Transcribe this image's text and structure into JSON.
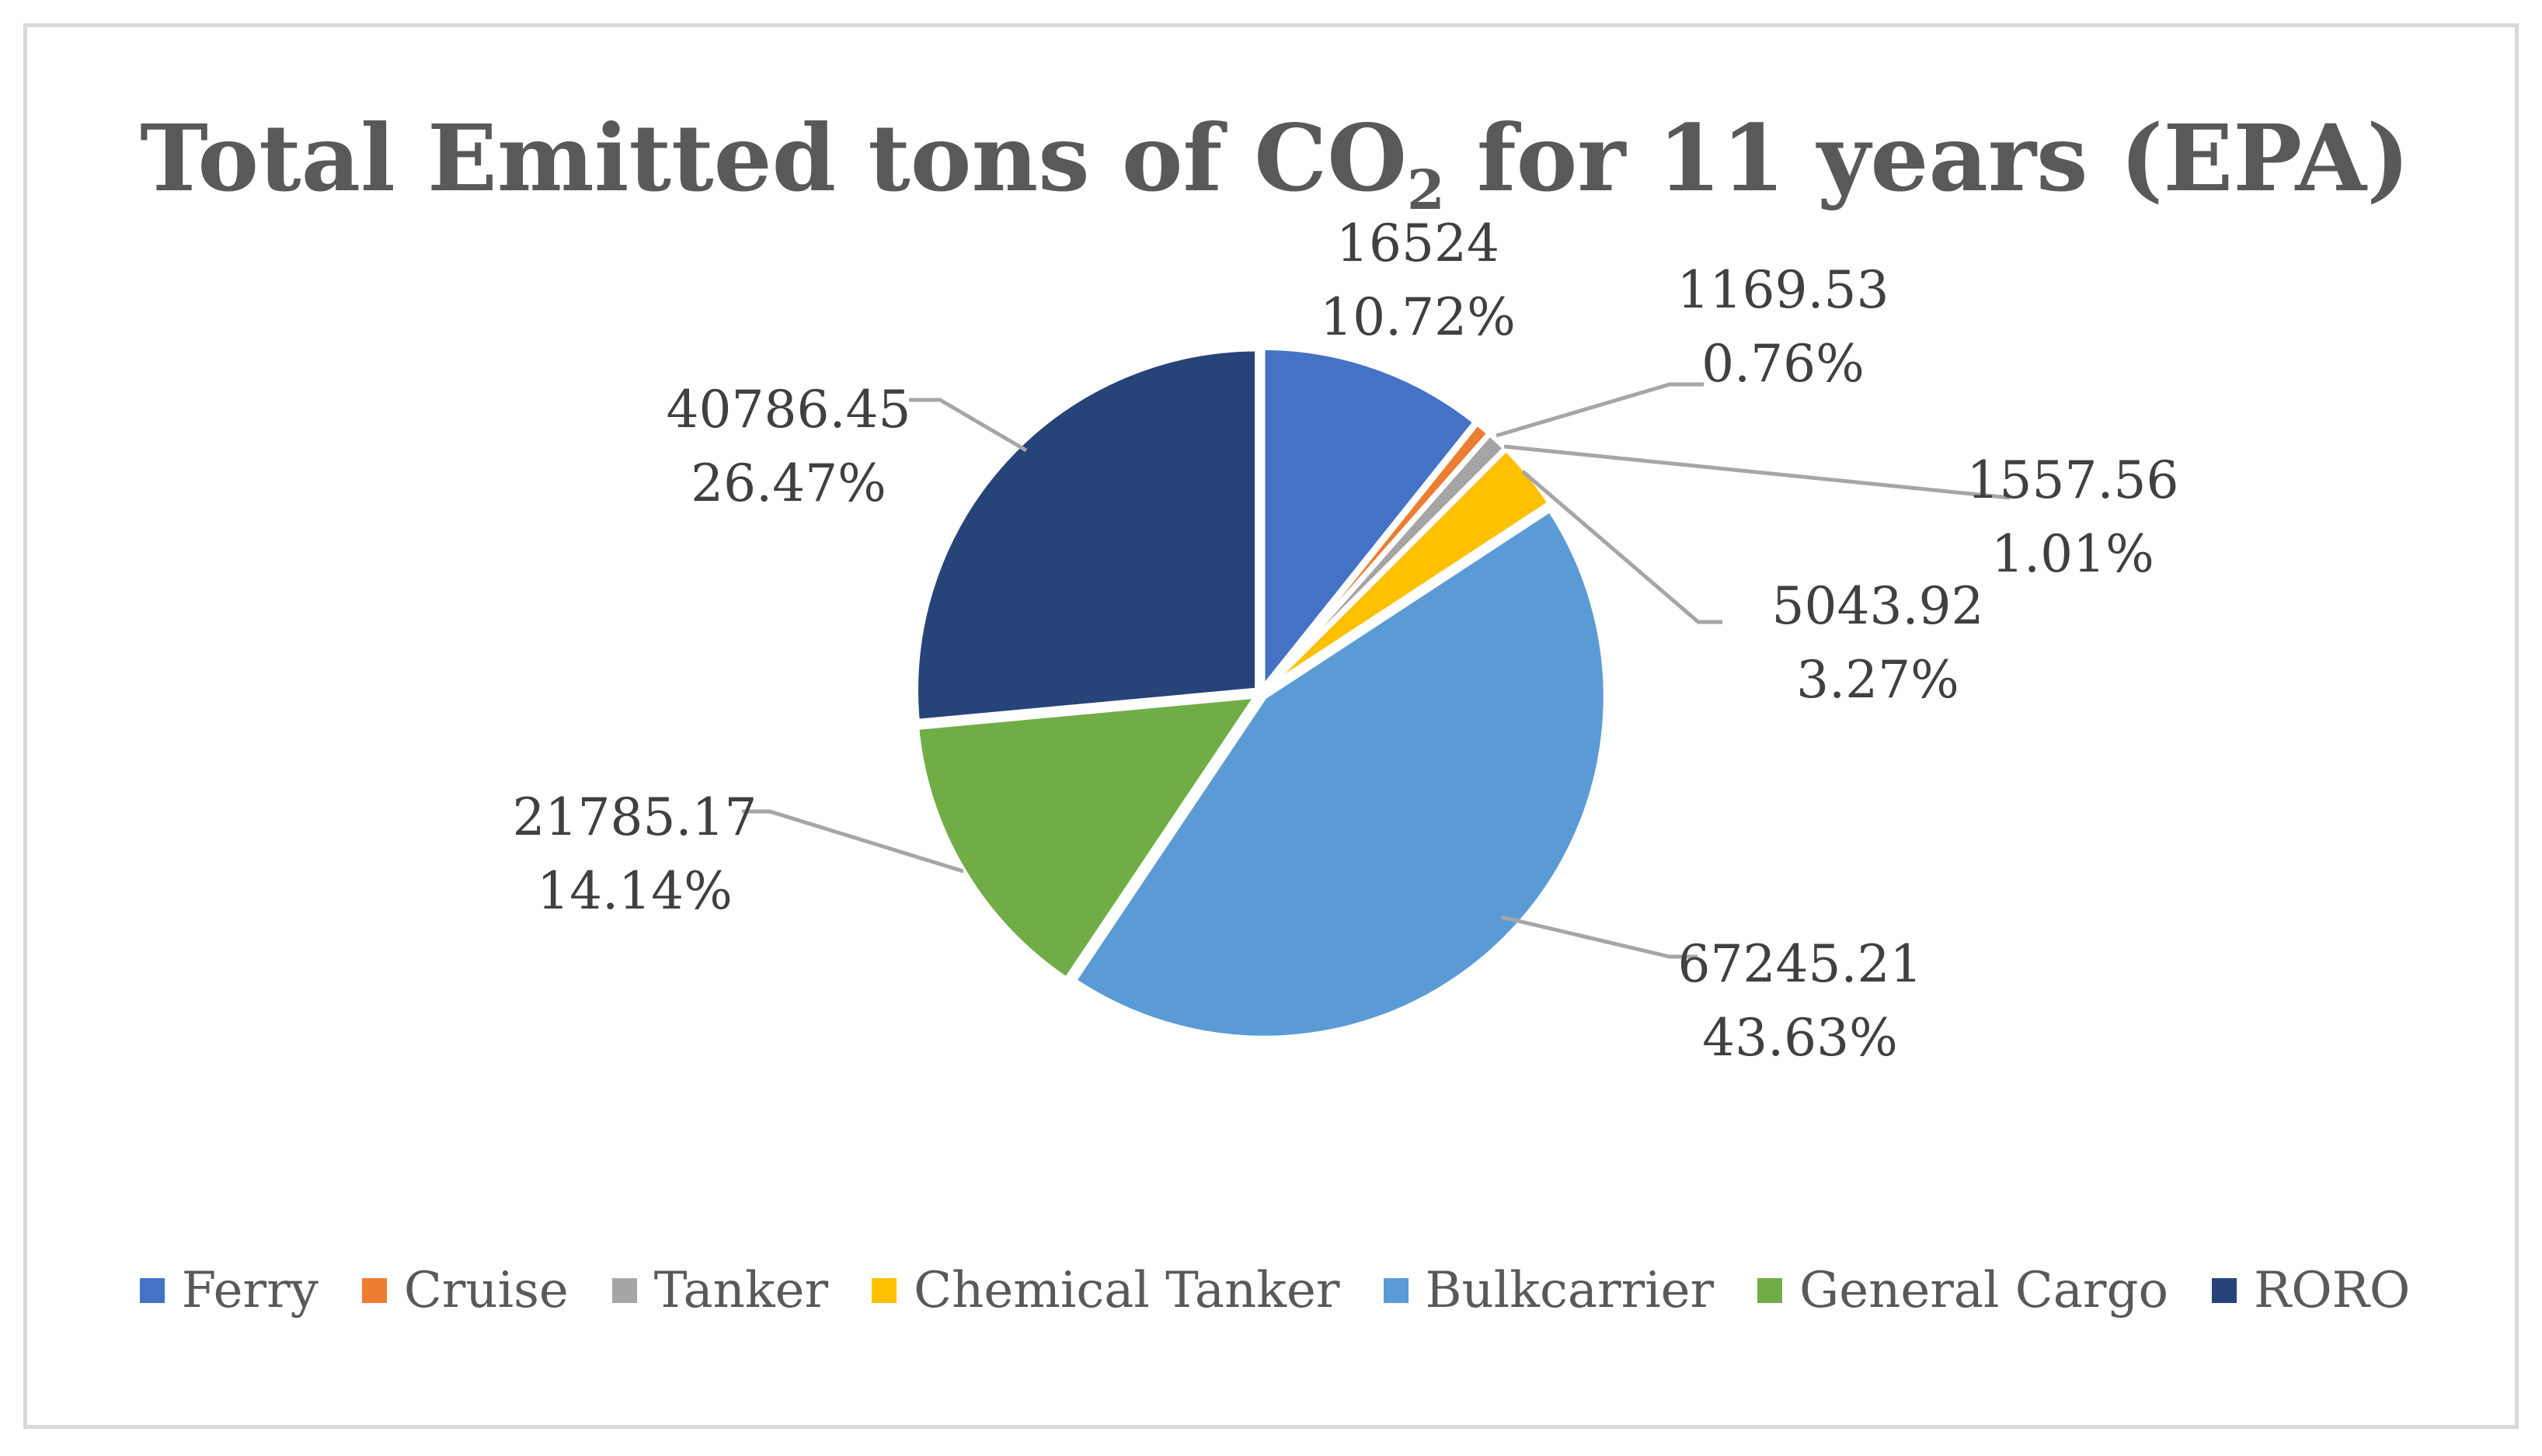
{
  "chart_data": {
    "type": "pie",
    "title_main": "Total Emitted tons of CO",
    "title_sub": "2",
    "title_rest": " for 11 years (EPA)",
    "legend_position": "bottom",
    "slices": [
      {
        "name": "Ferry",
        "value": 16524,
        "value_label": "16524",
        "percent_label": "10.72%",
        "color": "#4472c4"
      },
      {
        "name": "Cruise",
        "value": 1169.53,
        "value_label": "1169.53",
        "percent_label": "0.76%",
        "color": "#ed7d31"
      },
      {
        "name": "Tanker",
        "value": 1557.56,
        "value_label": "1557.56",
        "percent_label": "1.01%",
        "color": "#a5a5a5"
      },
      {
        "name": "Chemical Tanker",
        "value": 5043.92,
        "value_label": "5043.92",
        "percent_label": "3.27%",
        "color": "#ffc000"
      },
      {
        "name": "Bulkcarrier",
        "value": 67245.21,
        "value_label": "67245.21",
        "percent_label": "43.63%",
        "color": "#5b9bd5"
      },
      {
        "name": "General Cargo",
        "value": 21785.17,
        "value_label": "21785.17",
        "percent_label": "14.14%",
        "color": "#70ad47"
      },
      {
        "name": "RORO",
        "value": 40786.45,
        "value_label": "40786.45",
        "percent_label": "26.47%",
        "color": "#264478"
      }
    ]
  }
}
